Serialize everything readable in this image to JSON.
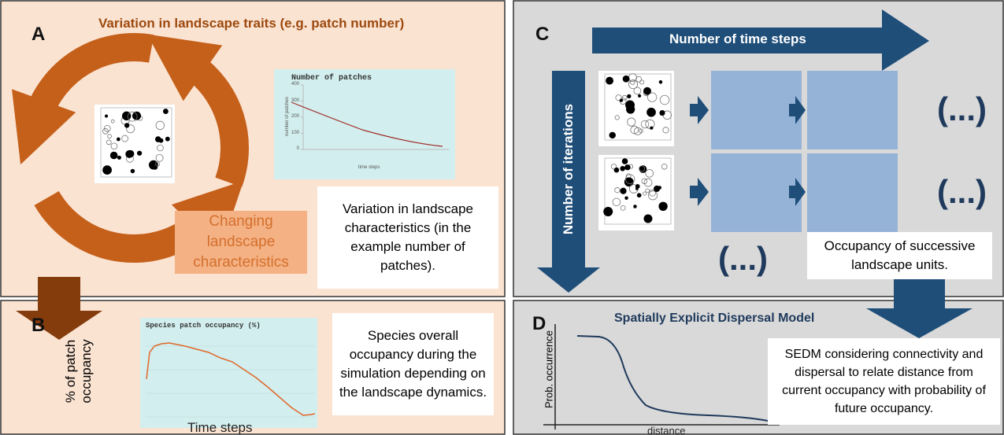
{
  "panels": [
    {
      "letter": "A",
      "title": "Variation in landscape traits  (e.g. patch number)",
      "chart_title": "Number of patches",
      "y_label": "number of patches",
      "x_label": "time steps",
      "yticks": [
        400,
        300,
        200,
        100,
        0
      ],
      "box_label": "Changing landscape characteristics",
      "caption": "Variation in landscape characteristics (in the example number of patches)."
    },
    {
      "letter": "B",
      "y_label": "% of patch occupancy",
      "x_label": "Time steps",
      "chart_title": "Species patch occupancy (%)",
      "caption": "Species overall occupancy during the simulation depending on the landscape dynamics."
    },
    {
      "letter": "C",
      "arrow_top": "Number of time steps",
      "arrow_left": "Number of iterations",
      "ellipsis": "(...)",
      "caption": "Occupancy of successive landscape units."
    },
    {
      "letter": "D",
      "title": "Spatially Explicit Dispersal Model",
      "y_label": "Prob. occurrence",
      "x_label": "distance",
      "caption": "SEDM considering connectivity and dispersal to relate distance from current occupancy with probability of future occupancy."
    }
  ]
}
